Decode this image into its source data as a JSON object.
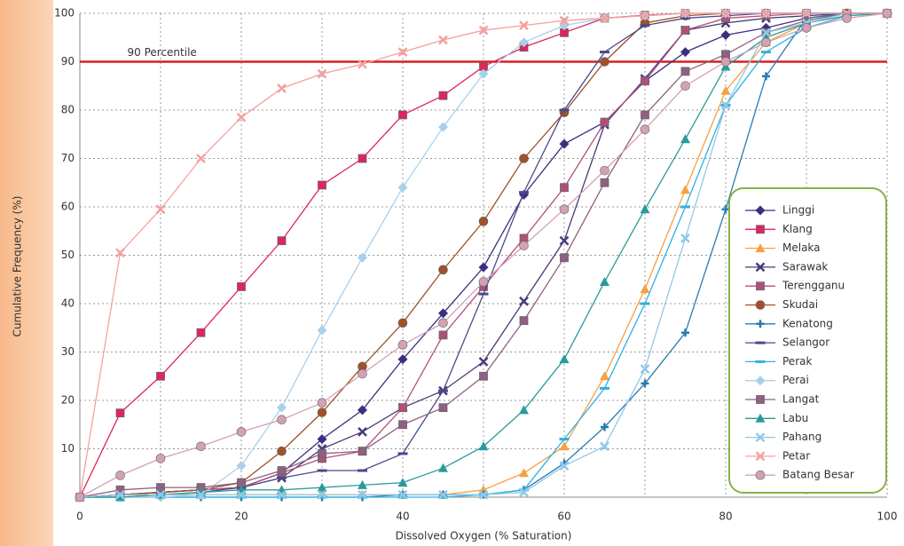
{
  "chart_data": {
    "type": "line",
    "x_label": "Dissolved Oxygen (% Saturation)",
    "y_label": "Cumulative Frequency (%)",
    "annotation": "90 Percentile",
    "reference_line": 90,
    "reference_color": "#d62020",
    "x": [
      0,
      5,
      10,
      15,
      20,
      25,
      30,
      35,
      40,
      45,
      50,
      55,
      60,
      65,
      70,
      75,
      80,
      85,
      90,
      95,
      100
    ],
    "xlim": [
      0,
      100
    ],
    "xticks": [
      0,
      20,
      40,
      60,
      80,
      100
    ],
    "ylim": [
      0,
      100
    ],
    "yticks": [
      10,
      20,
      30,
      40,
      50,
      60,
      70,
      80,
      90,
      100
    ],
    "grid": true,
    "legend": "right",
    "series": [
      {
        "name": "Linggi",
        "color": "#3c2f80",
        "marker": "diamond",
        "values": [
          0,
          0.5,
          1,
          1.5,
          2,
          5,
          12,
          18,
          28.5,
          38,
          47.5,
          62.5,
          73,
          77.5,
          86,
          92,
          95.5,
          97,
          99,
          100,
          100
        ]
      },
      {
        "name": "Klang",
        "color": "#e0245c",
        "marker": "square",
        "values": [
          0,
          17.4,
          25,
          34,
          43.5,
          53,
          64.5,
          70,
          79,
          83,
          89,
          93,
          96,
          99,
          99.6,
          100,
          100,
          100,
          100,
          100,
          100
        ]
      },
      {
        "name": "Melaka",
        "color": "#f5a142",
        "marker": "triangle",
        "values": [
          0,
          0.5,
          0.5,
          0.5,
          0.5,
          0.5,
          0.5,
          0.5,
          0.5,
          0.5,
          1.5,
          5,
          10.5,
          25,
          43,
          63.5,
          84,
          94,
          98,
          100,
          100
        ]
      },
      {
        "name": "Sarawak",
        "color": "#4a3a7a",
        "marker": "x",
        "values": [
          0,
          0.5,
          1,
          1.5,
          2,
          4,
          10,
          13.5,
          18.5,
          22,
          28,
          40.5,
          53,
          77,
          86.5,
          96.5,
          98,
          99,
          99.5,
          100,
          100
        ]
      },
      {
        "name": "Terengganu",
        "color": "#b0507a",
        "marker": "square",
        "values": [
          0,
          0.5,
          1,
          1.5,
          2,
          5,
          8,
          9.5,
          18.5,
          33.5,
          43.5,
          53.5,
          64,
          77.5,
          86,
          96.5,
          99,
          99.5,
          100,
          100,
          100
        ]
      },
      {
        "name": "Skudai",
        "color": "#a0502a",
        "marker": "circle",
        "values": [
          0,
          0.5,
          1,
          1.5,
          3,
          9.5,
          17.5,
          27,
          36,
          47,
          57,
          70,
          79.5,
          90,
          98,
          99.5,
          100,
          100,
          100,
          100,
          100
        ]
      },
      {
        "name": "Kenatong",
        "color": "#2a7ab0",
        "marker": "plus",
        "values": [
          0,
          0,
          0,
          0,
          0,
          0,
          0,
          0,
          0.5,
          0.5,
          0.5,
          1.5,
          7,
          14.5,
          23.5,
          34,
          59.5,
          87,
          99,
          100,
          100
        ]
      },
      {
        "name": "Selangor",
        "color": "#4a4a8a",
        "marker": "dash",
        "values": [
          0,
          0,
          0.5,
          1,
          2,
          4,
          5.5,
          5.5,
          9,
          22,
          42,
          63,
          80,
          92,
          97.5,
          99,
          99.5,
          100,
          100,
          100,
          100
        ]
      },
      {
        "name": "Perak",
        "color": "#30b0e0",
        "marker": "dash",
        "values": [
          0,
          0,
          0,
          0,
          0,
          0,
          0,
          0,
          0,
          0,
          0.5,
          1.5,
          12,
          22.5,
          40,
          60,
          81,
          92,
          97,
          99.5,
          100
        ]
      },
      {
        "name": "Perai",
        "color": "#a8d0ec",
        "marker": "diamond",
        "values": [
          0,
          0,
          0,
          0.5,
          6.5,
          18.5,
          34.5,
          49.5,
          64,
          76.5,
          87.5,
          94,
          97.5,
          99,
          99.5,
          100,
          100,
          100,
          100,
          100,
          100
        ]
      },
      {
        "name": "Langat",
        "color": "#906080",
        "marker": "square",
        "values": [
          0,
          1.5,
          2,
          2,
          3,
          5.5,
          9,
          9.5,
          15,
          18.5,
          25,
          36.5,
          49.5,
          65,
          79,
          88,
          91.5,
          96,
          98.5,
          100,
          100
        ]
      },
      {
        "name": "Labu",
        "color": "#2a9a9a",
        "marker": "triangle",
        "values": [
          0,
          0,
          0.5,
          1,
          1.5,
          1.5,
          2,
          2.5,
          3,
          6,
          10.5,
          18,
          28.5,
          44.5,
          59.5,
          74,
          89,
          95,
          98,
          99.5,
          100
        ]
      },
      {
        "name": "Pahang",
        "color": "#90c8e8",
        "marker": "x",
        "values": [
          0,
          0.5,
          0.5,
          0.5,
          0.5,
          0.5,
          0.5,
          0.5,
          0.5,
          0.5,
          0.5,
          1,
          6.5,
          10.5,
          26.5,
          53.5,
          81,
          96,
          98,
          100,
          100
        ]
      },
      {
        "name": "Petar",
        "color": "#f4a0a0",
        "marker": "x",
        "values": [
          0,
          50.5,
          59.5,
          70,
          78.5,
          84.5,
          87.5,
          89.5,
          92,
          94.5,
          96.5,
          97.5,
          98.5,
          99,
          99.5,
          100,
          100,
          100,
          100,
          100,
          100
        ]
      },
      {
        "name": "Batang Besar",
        "color": "#d4a0b4",
        "marker": "circle",
        "values": [
          0,
          4.5,
          8,
          10.5,
          13.5,
          16,
          19.5,
          25.5,
          31.5,
          36,
          44.5,
          52,
          59.5,
          67.5,
          76,
          85,
          90,
          94,
          97,
          99,
          100
        ]
      }
    ]
  }
}
